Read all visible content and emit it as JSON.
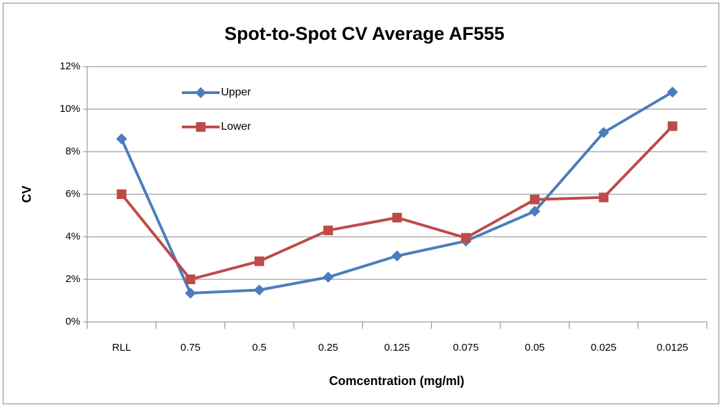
{
  "chart_data": {
    "type": "line",
    "title": "Spot-to-Spot CV Average AF555",
    "x_label": "Comcentration (mg/ml)",
    "y_label": "CV",
    "categories": [
      "RLL",
      "0.75",
      "0.5",
      "0.25",
      "0.125",
      "0.075",
      "0.05",
      "0.025",
      "0.0125"
    ],
    "series": [
      {
        "name": "Upper",
        "color": "#4a7ebb",
        "marker": "diamond",
        "values": [
          8.6,
          1.35,
          1.5,
          2.1,
          3.1,
          3.8,
          5.2,
          8.9,
          10.8
        ]
      },
      {
        "name": "Lower",
        "color": "#be4b48",
        "marker": "square",
        "values": [
          6.0,
          2.0,
          2.85,
          4.3,
          4.9,
          3.95,
          5.75,
          5.85,
          9.2
        ]
      }
    ],
    "ylim": [
      0,
      12
    ],
    "yticks": [
      {
        "value": 0,
        "label": "0%"
      },
      {
        "value": 2,
        "label": "2%"
      },
      {
        "value": 4,
        "label": "4%"
      },
      {
        "value": 6,
        "label": "6%"
      },
      {
        "value": 8,
        "label": "8%"
      },
      {
        "value": 10,
        "label": "10%"
      },
      {
        "value": 12,
        "label": "12%"
      }
    ],
    "grid": true,
    "legend": "upper left"
  }
}
